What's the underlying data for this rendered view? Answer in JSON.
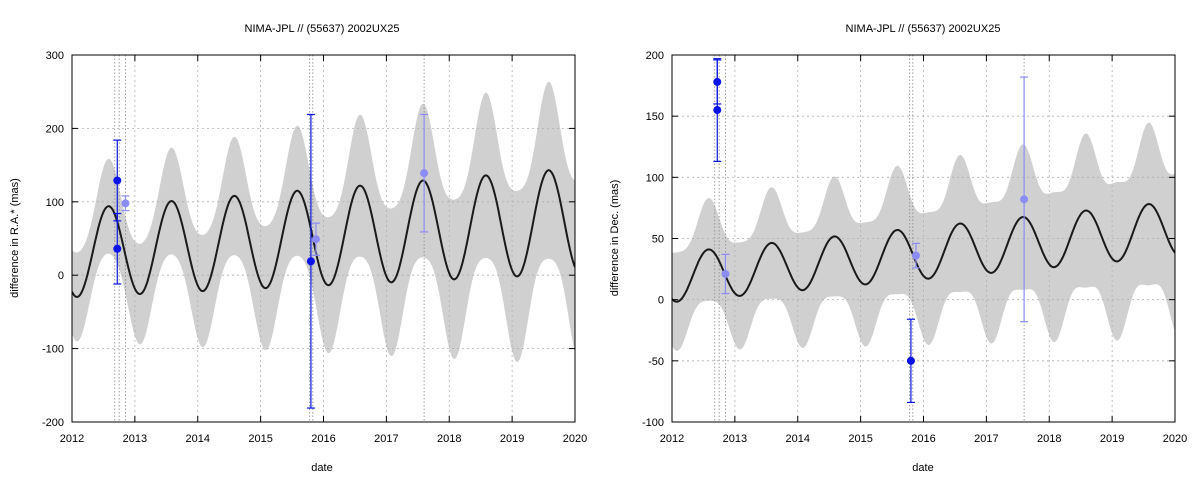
{
  "chart_data": [
    {
      "type": "scatter",
      "title": "NIMA-JPL // (55637) 2002UX25",
      "xlabel": "date",
      "ylabel": "difference in R.A.* (mas)",
      "xlim": [
        2012,
        2020
      ],
      "ylim": [
        -200,
        300
      ],
      "xticks": [
        "2012",
        "2013",
        "2014",
        "2015",
        "2016",
        "2017",
        "2018",
        "2019",
        "2020"
      ],
      "yticks": [
        "-200",
        "-100",
        "0",
        "100",
        "200",
        "300"
      ],
      "grid": true,
      "model": {
        "mean": 30,
        "trend_per_year": 5.5,
        "amplitude": 60,
        "amp_growth_per_year": 1.5,
        "period_years": 1.0,
        "peak_phase": 0.58,
        "band_halfwidth": 60,
        "band_growth_per_year": 8
      },
      "obs_dark": [
        {
          "x": 2012.72,
          "y": 129,
          "err": 55
        },
        {
          "x": 2012.72,
          "y": 36,
          "err": 48
        },
        {
          "x": 2015.8,
          "y": 19,
          "err": 200
        }
      ],
      "obs_light": [
        {
          "x": 2012.85,
          "y": 98,
          "err": 10
        },
        {
          "x": 2015.88,
          "y": 49,
          "err": 22
        },
        {
          "x": 2017.6,
          "y": 139,
          "err": 80
        }
      ],
      "vlines": [
        2012.68,
        2012.75,
        2012.85,
        2015.78,
        2015.83,
        2017.6
      ],
      "colors": {
        "dark": "#0a14e6",
        "light": "#8c8cf5",
        "band": "#d0d0d0",
        "line": "#1a1a1a"
      }
    },
    {
      "type": "scatter",
      "title": "NIMA-JPL // (55637) 2002UX25",
      "xlabel": "date",
      "ylabel": "difference in Dec. (mas)",
      "xlim": [
        2012,
        2020
      ],
      "ylim": [
        -100,
        200
      ],
      "xticks": [
        "2012",
        "2013",
        "2014",
        "2015",
        "2016",
        "2017",
        "2018",
        "2019",
        "2020"
      ],
      "yticks": [
        "-100",
        "-50",
        "0",
        "50",
        "100",
        "150",
        "200"
      ],
      "grid": true,
      "model": {
        "mean": 18,
        "trend_per_year": 5.0,
        "amplitude": 20,
        "amp_growth_per_year": 0.3,
        "period_years": 1.0,
        "peak_phase": 0.58,
        "band_halfwidth": 40,
        "band_growth_per_year": 3.5
      },
      "obs_dark": [
        {
          "x": 2012.72,
          "y": 178,
          "err": 18
        },
        {
          "x": 2012.72,
          "y": 155,
          "err": 42
        },
        {
          "x": 2015.8,
          "y": -50,
          "err": 34
        }
      ],
      "obs_light": [
        {
          "x": 2012.85,
          "y": 21,
          "err": 16
        },
        {
          "x": 2015.88,
          "y": 36,
          "err": 10
        },
        {
          "x": 2017.6,
          "y": 82,
          "err": 100
        }
      ],
      "vlines": [
        2012.68,
        2012.75,
        2012.85,
        2015.78,
        2015.83,
        2017.6
      ],
      "colors": {
        "dark": "#0a14e6",
        "light": "#8c8cf5",
        "band": "#d0d0d0",
        "line": "#1a1a1a"
      }
    }
  ]
}
